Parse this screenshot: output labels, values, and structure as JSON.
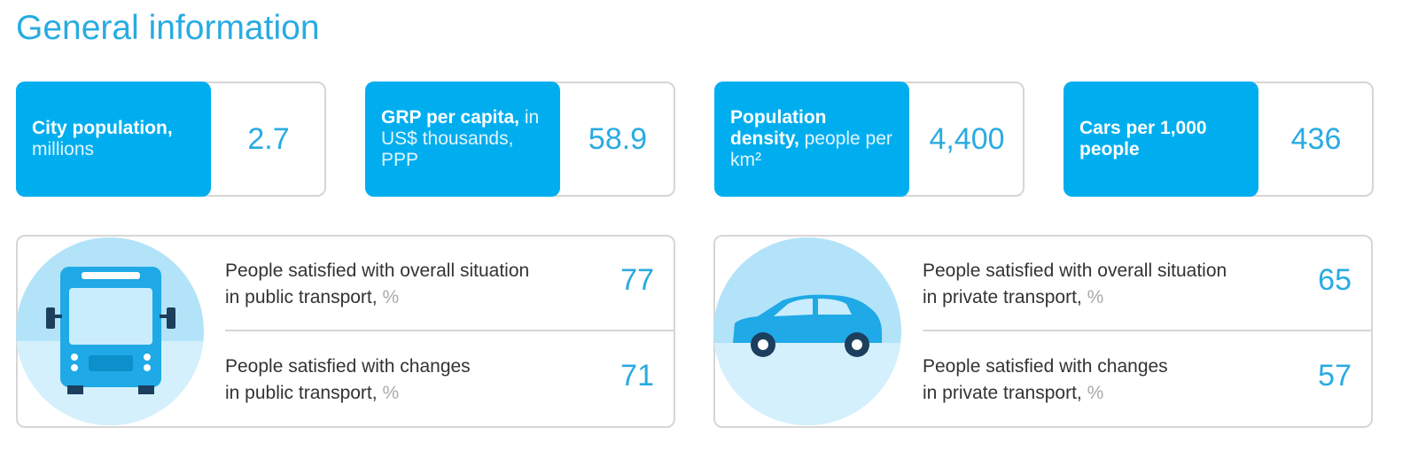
{
  "header": {
    "title": "General information"
  },
  "stats": [
    {
      "label": "City population,",
      "unit": "millions",
      "value": 2.7
    },
    {
      "label": "GRP per capita,",
      "unit": "in US$ thousands, PPP",
      "value": 58.9
    },
    {
      "label": "Population density,",
      "unit": "people per km²",
      "value": "4,400"
    },
    {
      "label": "Cars per 1,000 people",
      "value": 436
    }
  ],
  "panels": [
    {
      "rows": [
        {
          "lines": [
            "People satisfied with overall situation",
            "in public transport,"
          ],
          "unit": "%",
          "value": 77
        },
        {
          "lines": [
            "People satisfied with changes",
            "in public transport,"
          ],
          "unit": "%",
          "value": 71
        }
      ]
    },
    {
      "rows": [
        {
          "lines": [
            "People satisfied with overall situation",
            "in private transport,"
          ],
          "unit": "%",
          "value": 65
        },
        {
          "lines": [
            "People satisfied with changes",
            "in private transport,"
          ],
          "unit": "%",
          "value": 57
        }
      ]
    }
  ]
}
